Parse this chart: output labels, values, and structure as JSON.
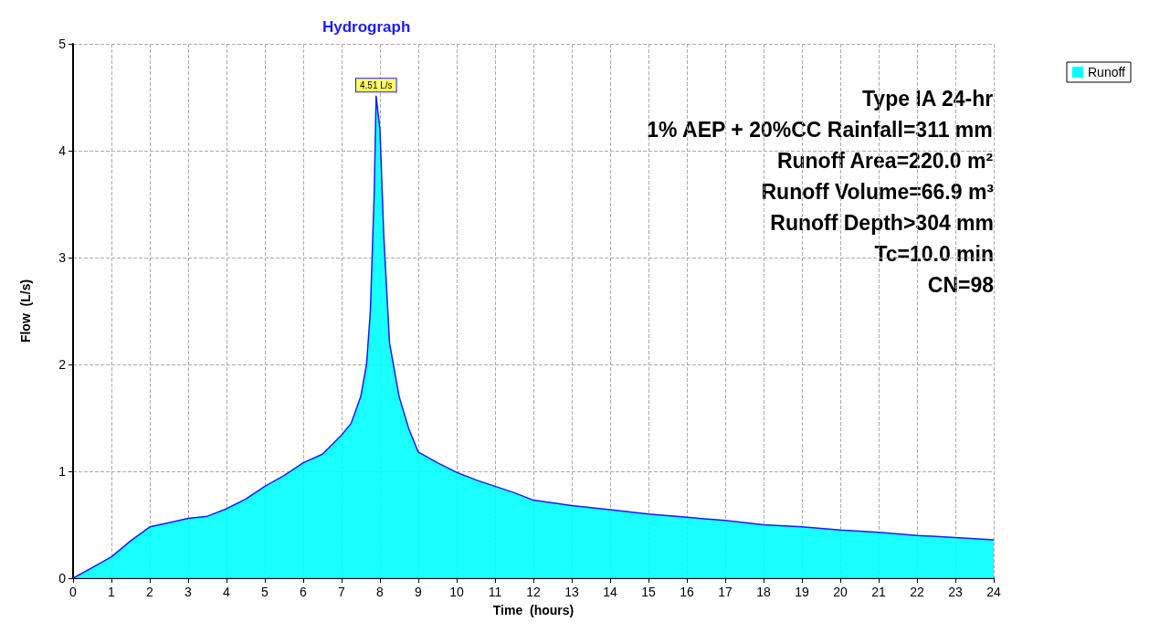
{
  "chart_data": {
    "type": "area",
    "title": "Hydrograph",
    "xlabel": "Time  (hours)",
    "ylabel": "Flow  (L/s)",
    "xlim": [
      0,
      24
    ],
    "xticks": [
      0,
      1,
      2,
      3,
      4,
      5,
      6,
      7,
      8,
      9,
      10,
      11,
      12,
      13,
      14,
      15,
      16,
      17,
      18,
      19,
      20,
      21,
      22,
      23,
      24
    ],
    "ylim": [
      0,
      5
    ],
    "yticks": [
      0,
      1,
      2,
      3,
      4,
      5
    ],
    "grid": true,
    "legend": "top right",
    "marker": "none",
    "line_style": "solid",
    "series": [
      {
        "name": "Runoff",
        "color": "#00ffff",
        "x": [
          0,
          0.5,
          1,
          1.5,
          2,
          2.5,
          3,
          3.5,
          4,
          4.5,
          5,
          5.5,
          6,
          6.5,
          7,
          7.25,
          7.5,
          7.65,
          7.75,
          7.85,
          7.9,
          8.0,
          8.1,
          8.25,
          8.5,
          8.75,
          9,
          9.5,
          10,
          10.5,
          11,
          11.5,
          12,
          13,
          14,
          15,
          16,
          17,
          18,
          19,
          20,
          21,
          22,
          23,
          24
        ],
        "values": [
          0,
          0.1,
          0.2,
          0.35,
          0.48,
          0.52,
          0.56,
          0.58,
          0.65,
          0.74,
          0.86,
          0.96,
          1.08,
          1.16,
          1.34,
          1.45,
          1.7,
          2.0,
          2.5,
          3.6,
          4.51,
          4.2,
          3.2,
          2.2,
          1.7,
          1.4,
          1.18,
          1.08,
          0.99,
          0.92,
          0.86,
          0.8,
          0.73,
          0.68,
          0.64,
          0.6,
          0.57,
          0.54,
          0.5,
          0.48,
          0.45,
          0.43,
          0.4,
          0.38,
          0.36
        ]
      }
    ],
    "annotations": [
      {
        "text": "4.51 L/s",
        "x": 7.9,
        "y": 4.51
      },
      "Type IA 24-hr",
      "1% AEP + 20%CC Rainfall=311 mm",
      "Runoff Area=220.0 m²",
      "Runoff Volume=66.9 m³",
      "Runoff Depth>304 mm",
      "Tc=10.0 min",
      "CN=98"
    ]
  }
}
